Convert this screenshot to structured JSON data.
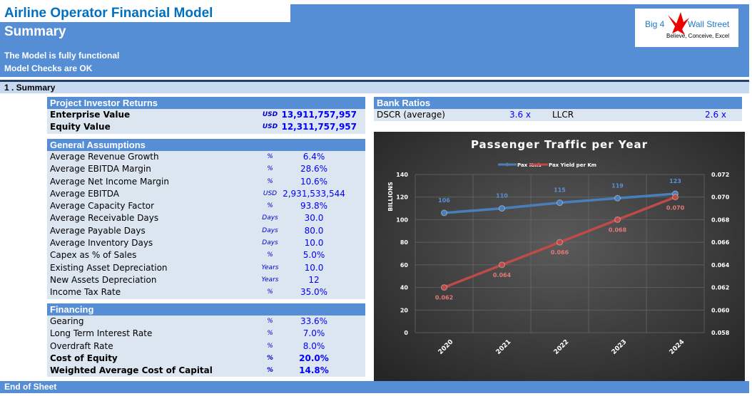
{
  "header": {
    "title": "Airline Operator Financial Model",
    "subtitle": "Summary",
    "status_1": "The Model is fully functional",
    "status_2": "Model Checks are OK"
  },
  "logo": {
    "text_left": "Big 4",
    "text_right": "Wall Street",
    "tagline": "Believe, Conceive, Excel"
  },
  "section": "1 . Summary",
  "investor_returns": {
    "title": "Project Investor Returns",
    "rows": [
      {
        "label": "Enterprise Value",
        "unit": "USD",
        "value": "13,911,757,957"
      },
      {
        "label": "Equity Value",
        "unit": "USD",
        "value": "12,311,757,957"
      }
    ]
  },
  "general": {
    "title": "General Assumptions",
    "rows": [
      {
        "label": "Average Revenue Growth",
        "unit": "%",
        "value": "6.4%"
      },
      {
        "label": "Average EBITDA Margin",
        "unit": "%",
        "value": "28.6%"
      },
      {
        "label": "Average Net Income Margin",
        "unit": "%",
        "value": "10.6%"
      },
      {
        "label": "Average EBITDA",
        "unit": "USD",
        "value": "2,931,533,544"
      },
      {
        "label": "Average Capacity Factor",
        "unit": "%",
        "value": "93.8%"
      },
      {
        "label": "Average Receivable Days",
        "unit": "Days",
        "value": "30.0"
      },
      {
        "label": "Average Payable Days",
        "unit": "Days",
        "value": "80.0"
      },
      {
        "label": "Average Inventory Days",
        "unit": "Days",
        "value": "10.0"
      },
      {
        "label": "Capex as % of Sales",
        "unit": "%",
        "value": "5.0%"
      },
      {
        "label": "Existing Asset Depreciation",
        "unit": "Years",
        "value": "10.0"
      },
      {
        "label": "New Assets Depreciation",
        "unit": "Years",
        "value": "12"
      },
      {
        "label": "Income Tax Rate",
        "unit": "%",
        "value": "35.0%"
      }
    ]
  },
  "financing": {
    "title": "Financing",
    "rows": [
      {
        "label": "Gearing",
        "unit": "%",
        "value": "33.6%"
      },
      {
        "label": "Long Term Interest Rate",
        "unit": "%",
        "value": "7.0%"
      },
      {
        "label": "Overdraft Rate",
        "unit": "%",
        "value": "8.0%"
      },
      {
        "label": "Cost of Equity",
        "unit": "%",
        "value": "20.0%",
        "bold": true
      },
      {
        "label": "Weighted Average Cost of Capital",
        "unit": "%",
        "value": "14.8%",
        "bold": true
      }
    ]
  },
  "bank": {
    "title": "Bank Ratios",
    "dscr_label": "DSCR (average)",
    "dscr_value": "3.6 x",
    "llcr_label": "LLCR",
    "llcr_value": "2.6 x"
  },
  "chart_data": {
    "type": "line",
    "title": "Passenger Traffic per Year",
    "categories": [
      "2020",
      "2021",
      "2022",
      "2023",
      "2024"
    ],
    "ylabel": "BILLIONS",
    "ylim": [
      0,
      140
    ],
    "yticks": [
      "0",
      "20",
      "40",
      "60",
      "80",
      "100",
      "120",
      "140"
    ],
    "y2lim": [
      0.058,
      0.072
    ],
    "y2ticks": [
      "0.058",
      "0.060",
      "0.062",
      "0.064",
      "0.066",
      "0.068",
      "0.070",
      "0.072"
    ],
    "grid": true,
    "legend": "top",
    "series": [
      {
        "name": "Pax Kms",
        "axis": "left",
        "color": "#4a7ebb",
        "values": [
          106,
          110,
          115,
          119,
          123
        ],
        "labels": [
          "106",
          "110",
          "115",
          "119",
          "123"
        ]
      },
      {
        "name": "Pax Yield per Km",
        "axis": "right",
        "color": "#be4b48",
        "values": [
          0.062,
          0.064,
          0.066,
          0.068,
          0.07
        ],
        "labels": [
          "0.062",
          "0.064",
          "0.066",
          "0.068",
          "0.070"
        ]
      }
    ]
  },
  "footer": "End of Sheet"
}
